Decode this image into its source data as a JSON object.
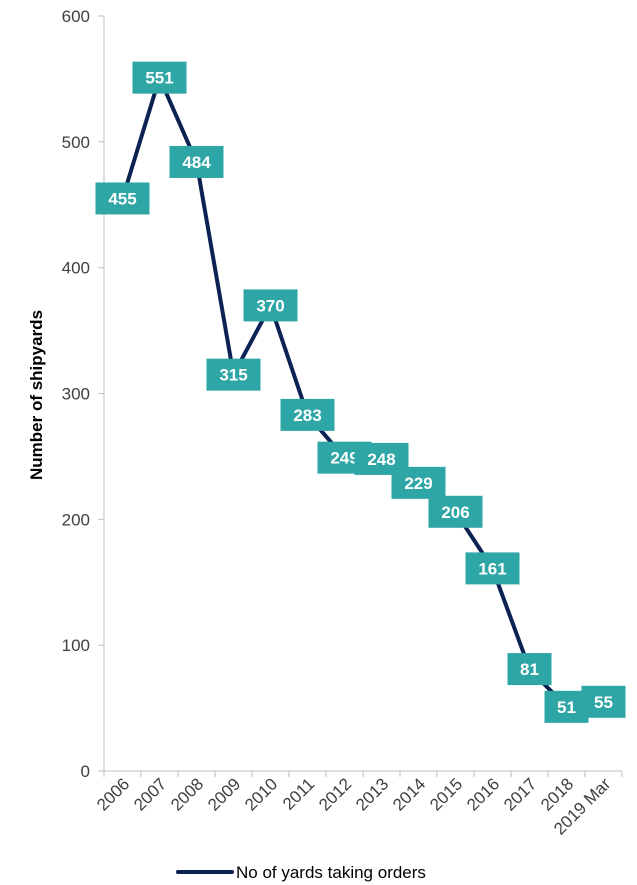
{
  "chart_data": {
    "type": "line",
    "categories": [
      "2006",
      "2007",
      "2008",
      "2009",
      "2010",
      "2011",
      "2012",
      "2013",
      "2014",
      "2015",
      "2016",
      "2017",
      "2018",
      "2019 Mar"
    ],
    "series": [
      {
        "name": "No of yards taking orders",
        "values": [
          455,
          551,
          484,
          315,
          370,
          283,
          249,
          248,
          229,
          206,
          161,
          81,
          51,
          55
        ]
      }
    ],
    "title": "",
    "xlabel": "",
    "ylabel": "Number of shipyards",
    "ylim": [
      0,
      600
    ],
    "yticks": [
      0,
      100,
      200,
      300,
      400,
      500,
      600
    ],
    "grid": false,
    "legend_position": "bottom",
    "data_labels": true,
    "colors": {
      "line": "#0b2253",
      "label_box": "#2fa6a6",
      "label_text": "#ffffff",
      "axis": "#bfbfbf"
    }
  }
}
